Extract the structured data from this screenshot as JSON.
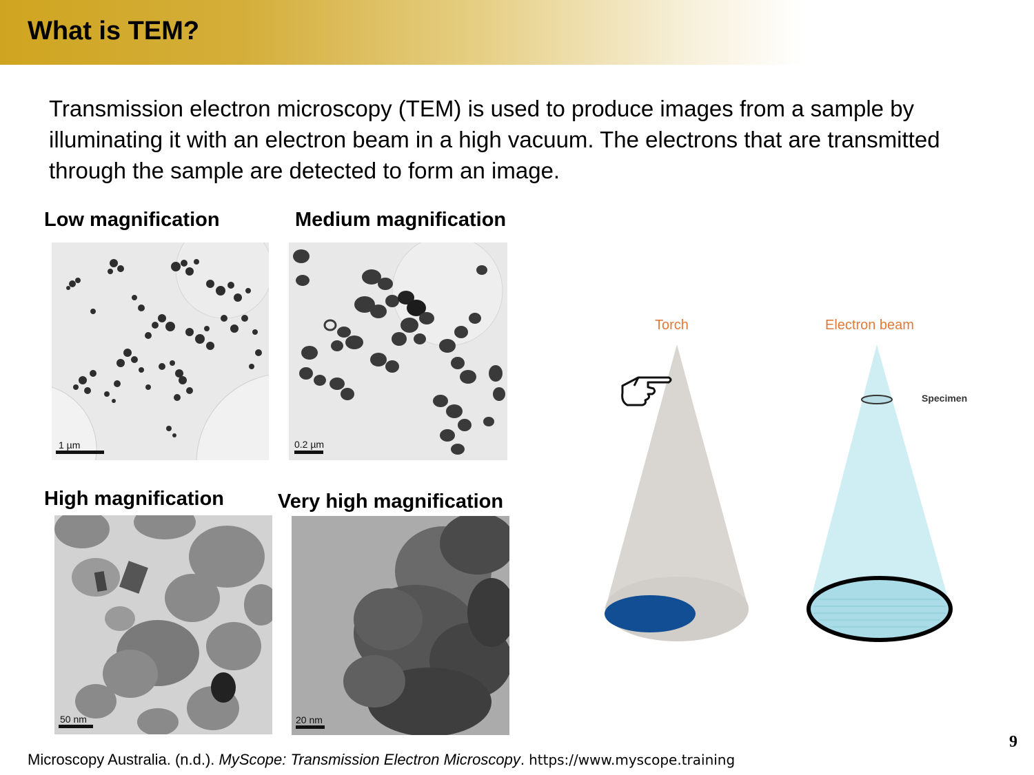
{
  "slide": {
    "title": "What is TEM?",
    "intro": "Transmission electron microscopy (TEM) is used to produce images from a sample by illuminating it with an electron beam in a high vacuum. The electrons that are transmitted through the sample are detected to form an image.",
    "page_number": "9"
  },
  "micrographs": [
    {
      "caption": "Low magnification",
      "scale": "1 µm"
    },
    {
      "caption": "Medium magnification",
      "scale": "0.2 µm"
    },
    {
      "caption": "High magnification",
      "scale": "50 nm"
    },
    {
      "caption": "Very high magnification",
      "scale": "20 nm"
    }
  ],
  "diagram": {
    "torch_label": "Torch",
    "beam_label": "Electron beam",
    "specimen_label": "Specimen",
    "colors": {
      "label": "#e07a3a",
      "torch_cone": "#d9d6d1",
      "torch_spot": "#124e93",
      "beam_cone": "#cfeef3"
    }
  },
  "citation": {
    "part1": "Microscopy Australia. (n.d.). ",
    "italic": "MyScope: Transmission Electron Microscopy",
    "part2": ". ",
    "url": "https://www.myscope.training"
  }
}
